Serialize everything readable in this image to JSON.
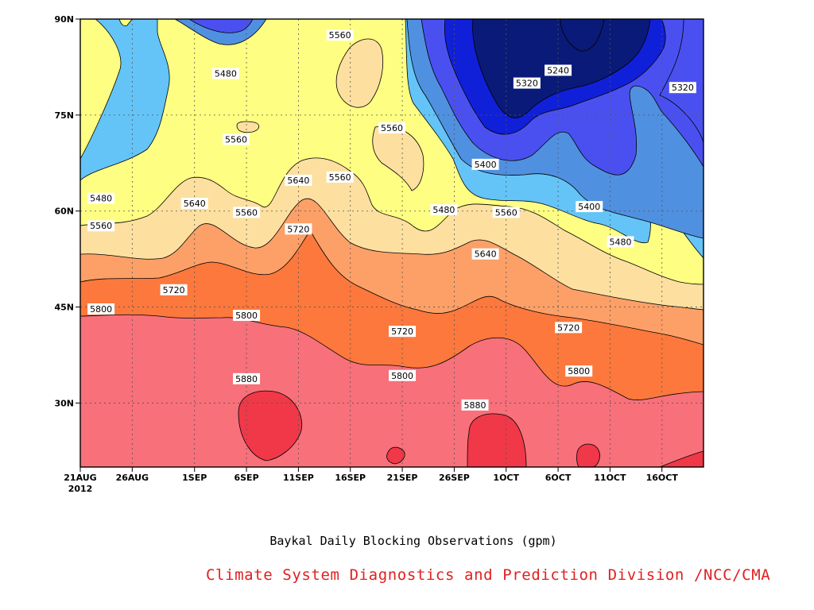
{
  "colors": {
    "c5200": "#0a1a78",
    "c5240": "#1020d8",
    "c5320": "#4a50f0",
    "c5400": "#5090e0",
    "c5480": "#64c4f8",
    "c5560": "#fefe82",
    "c5640": "#fde0a0",
    "c5720": "#fca068",
    "c5800": "#fc783c",
    "c5880": "#f7707a",
    "c5960": "#f03848",
    "credit": "#e02020"
  },
  "chart_data": {
    "type": "heatmap",
    "subtype": "contour (time-latitude Hovmoller)",
    "title": "Baykal Daily Blocking Observations (gpm)",
    "variable_unit": "gpm",
    "x_range": [
      "2012-08-21",
      "2012-10-20"
    ],
    "y_range": [
      20,
      90
    ],
    "x_ticks": [
      {
        "date": "2012-08-21",
        "label": "21AUG",
        "label2": "2012"
      },
      {
        "date": "2012-08-26",
        "label": "26AUG"
      },
      {
        "date": "2012-09-01",
        "label": "1SEP"
      },
      {
        "date": "2012-09-06",
        "label": "6SEP"
      },
      {
        "date": "2012-09-11",
        "label": "11SEP"
      },
      {
        "date": "2012-09-16",
        "label": "16SEP"
      },
      {
        "date": "2012-09-21",
        "label": "21SEP"
      },
      {
        "date": "2012-09-26",
        "label": "26SEP"
      },
      {
        "date": "2012-10-01",
        "label": "1OCT"
      },
      {
        "date": "2012-10-06",
        "label": "6OCT"
      },
      {
        "date": "2012-10-11",
        "label": "11OCT"
      },
      {
        "date": "2012-10-16",
        "label": "16OCT"
      }
    ],
    "y_ticks": [
      {
        "value": 30,
        "label": "30N"
      },
      {
        "value": 45,
        "label": "45N"
      },
      {
        "value": 60,
        "label": "60N"
      },
      {
        "value": 75,
        "label": "75N"
      },
      {
        "value": 90,
        "label": "90N"
      }
    ],
    "grid": "dotted",
    "contour_levels": [
      5240,
      5320,
      5400,
      5480,
      5560,
      5640,
      5720,
      5800,
      5880
    ],
    "contour_labels": [
      {
        "text": "5560",
        "date": "2012-09-15",
        "lat": 87.5
      },
      {
        "text": "5480",
        "date": "2012-09-04",
        "lat": 81.5
      },
      {
        "text": "5240",
        "date": "2012-10-06",
        "lat": 82.0
      },
      {
        "text": "5320",
        "date": "2012-10-03",
        "lat": 80.0
      },
      {
        "text": "5320",
        "date": "2012-10-18",
        "lat": 79.3
      },
      {
        "text": "5560",
        "date": "2012-09-20",
        "lat": 73.0
      },
      {
        "text": "5560",
        "date": "2012-09-05",
        "lat": 71.2
      },
      {
        "text": "5400",
        "date": "2012-09-29",
        "lat": 67.3
      },
      {
        "text": "5560",
        "date": "2012-09-15",
        "lat": 65.3
      },
      {
        "text": "5640",
        "date": "2012-09-11",
        "lat": 64.8
      },
      {
        "text": "5480",
        "date": "2012-08-23",
        "lat": 62.0
      },
      {
        "text": "5640",
        "date": "2012-09-01",
        "lat": 61.2
      },
      {
        "text": "5560",
        "date": "2012-09-06",
        "lat": 59.8
      },
      {
        "text": "5480",
        "date": "2012-09-25",
        "lat": 60.2
      },
      {
        "text": "5560",
        "date": "2012-10-01",
        "lat": 59.8
      },
      {
        "text": "5400",
        "date": "2012-10-09",
        "lat": 60.7
      },
      {
        "text": "5560",
        "date": "2012-08-23",
        "lat": 57.7
      },
      {
        "text": "5720",
        "date": "2012-09-11",
        "lat": 57.2
      },
      {
        "text": "5480",
        "date": "2012-10-12",
        "lat": 55.2
      },
      {
        "text": "5640",
        "date": "2012-09-29",
        "lat": 53.3
      },
      {
        "text": "5720",
        "date": "2012-08-30",
        "lat": 47.7
      },
      {
        "text": "5800",
        "date": "2012-08-23",
        "lat": 44.7
      },
      {
        "text": "5800",
        "date": "2012-09-06",
        "lat": 43.7
      },
      {
        "text": "5720",
        "date": "2012-09-21",
        "lat": 41.2
      },
      {
        "text": "5720",
        "date": "2012-10-07",
        "lat": 41.8
      },
      {
        "text": "5800",
        "date": "2012-10-08",
        "lat": 35.0
      },
      {
        "text": "5800",
        "date": "2012-09-21",
        "lat": 34.3
      },
      {
        "text": "5880",
        "date": "2012-09-06",
        "lat": 33.8
      },
      {
        "text": "5880",
        "date": "2012-09-28",
        "lat": 29.7
      }
    ]
  },
  "footer": {
    "title": "Baykal Daily Blocking Observations (gpm)",
    "credit": "Climate System Diagnostics and Prediction Division /NCC/CMA"
  }
}
